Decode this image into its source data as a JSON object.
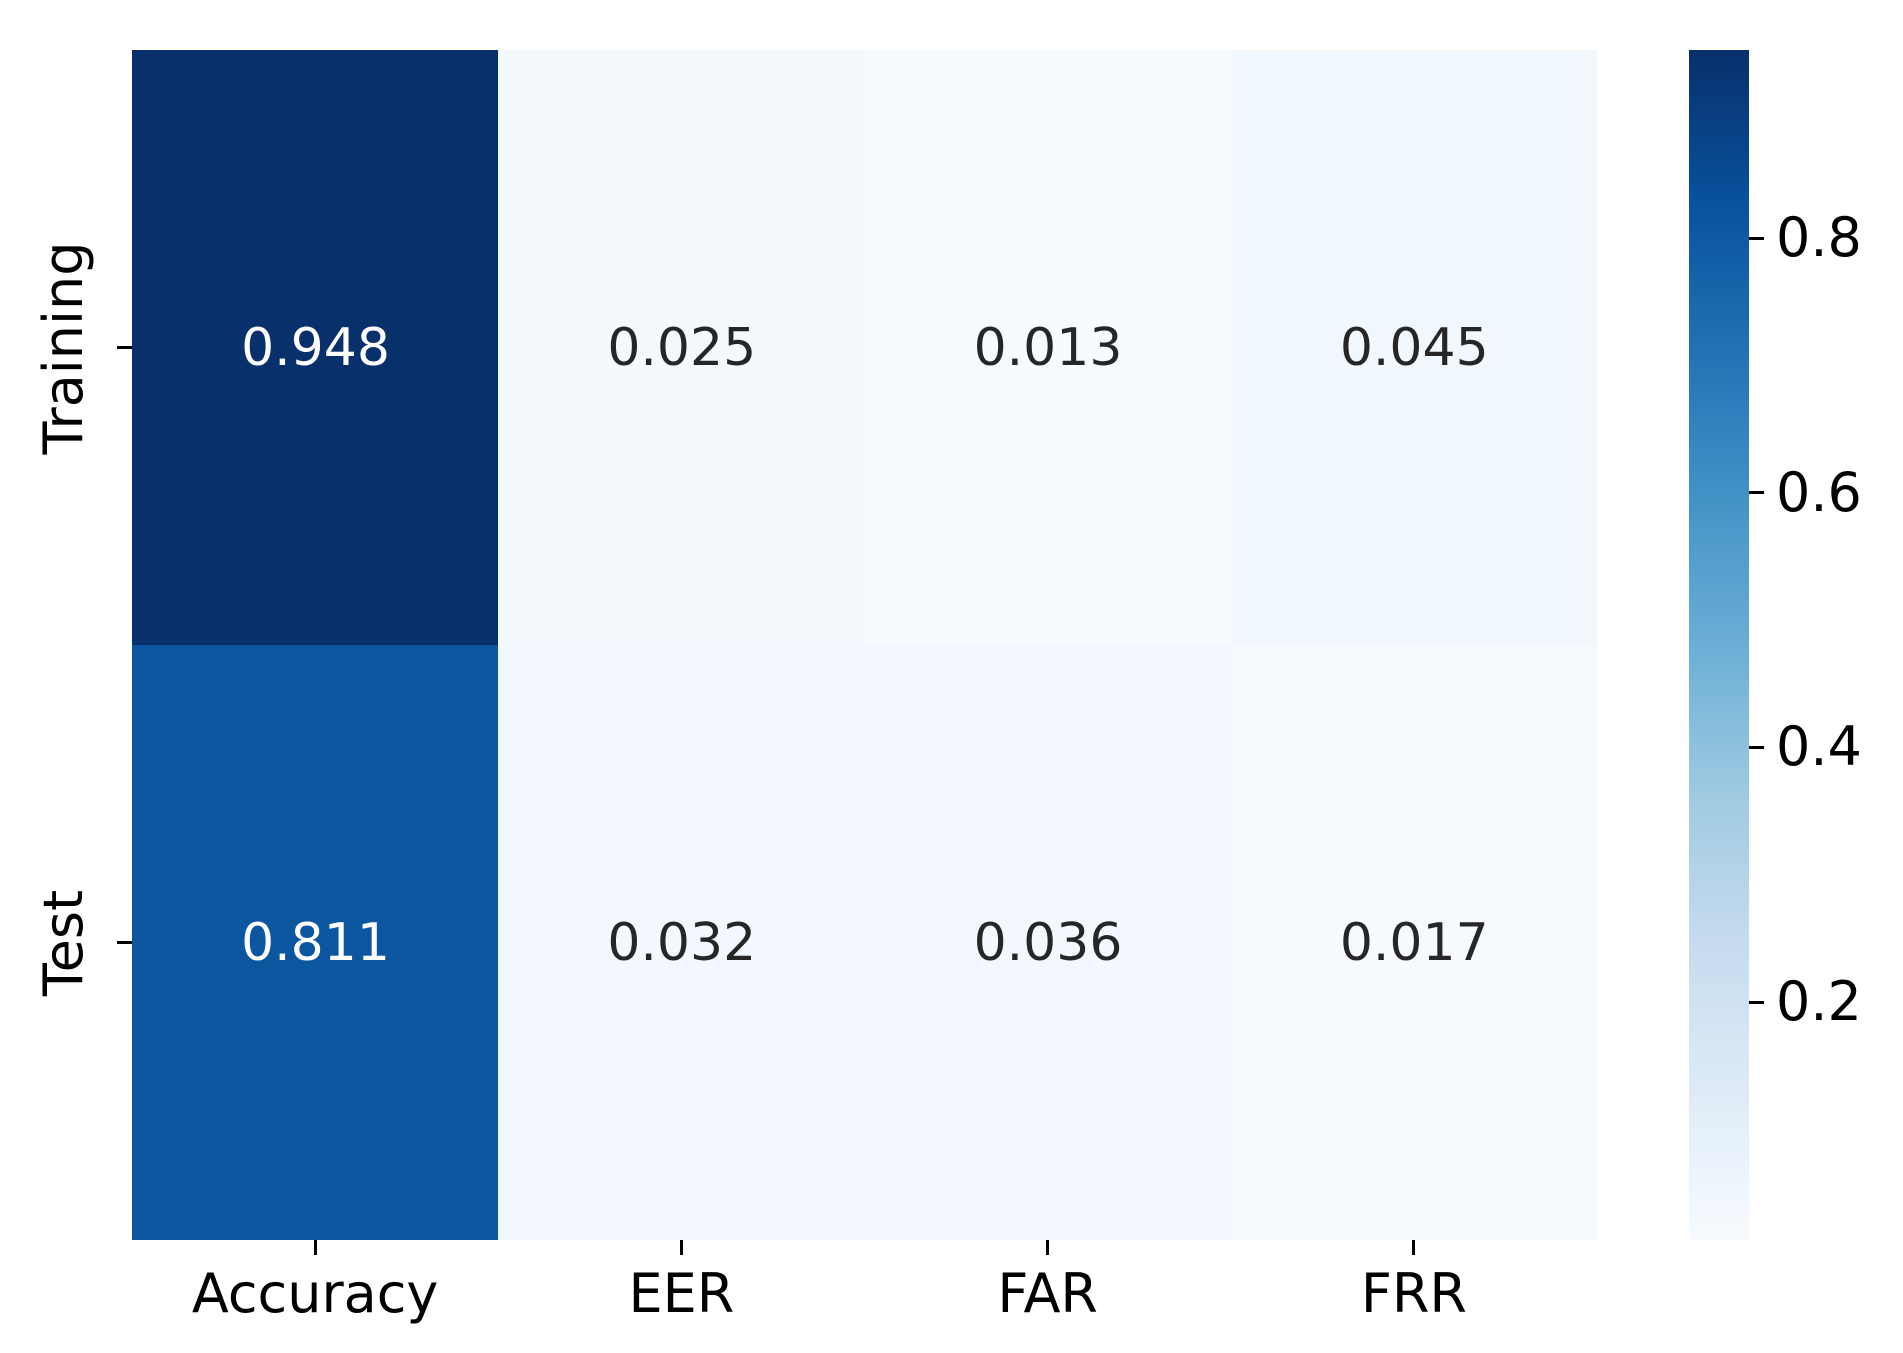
{
  "figure": {
    "background": "#ffffff",
    "tick_color": "#000000"
  },
  "chart_data": {
    "type": "heatmap",
    "title": "",
    "xlabel": "",
    "ylabel": "",
    "rows": [
      "Training",
      "Test"
    ],
    "columns": [
      "Accuracy",
      "EER",
      "FAR",
      "FRR"
    ],
    "series": [
      {
        "name": "Training",
        "values": [
          0.948,
          0.025,
          0.013,
          0.045
        ]
      },
      {
        "name": "Test",
        "values": [
          0.811,
          0.032,
          0.036,
          0.017
        ]
      }
    ],
    "cell_labels": [
      [
        "0.948",
        "0.025",
        "0.013",
        "0.045"
      ],
      [
        "0.811",
        "0.032",
        "0.036",
        "0.017"
      ]
    ],
    "cell_colors": [
      [
        "#08306b",
        "#f4f9fe",
        "#f7fbff",
        "#f0f7fd"
      ],
      [
        "#0c56a0",
        "#f3f8fe",
        "#f2f8fd",
        "#f6fafe"
      ]
    ],
    "cell_text_colors": [
      [
        "#ffffff",
        "#262626",
        "#262626",
        "#262626"
      ],
      [
        "#ffffff",
        "#262626",
        "#262626",
        "#262626"
      ]
    ],
    "colormap": "Blues",
    "vmin": 0.013,
    "vmax": 0.948,
    "grid": false,
    "legend_position": "right-colorbar",
    "colorbar": {
      "tick_values": [
        0.8,
        0.6,
        0.4,
        0.2
      ],
      "tick_labels": [
        "0.8",
        "0.6",
        "0.4",
        "0.2"
      ],
      "gradient_top_to_bottom": [
        "#08306b",
        "#08519c",
        "#2171b5",
        "#4292c6",
        "#6baed6",
        "#9ecae1",
        "#c6dbef",
        "#deebf7",
        "#f7fbff"
      ]
    }
  }
}
